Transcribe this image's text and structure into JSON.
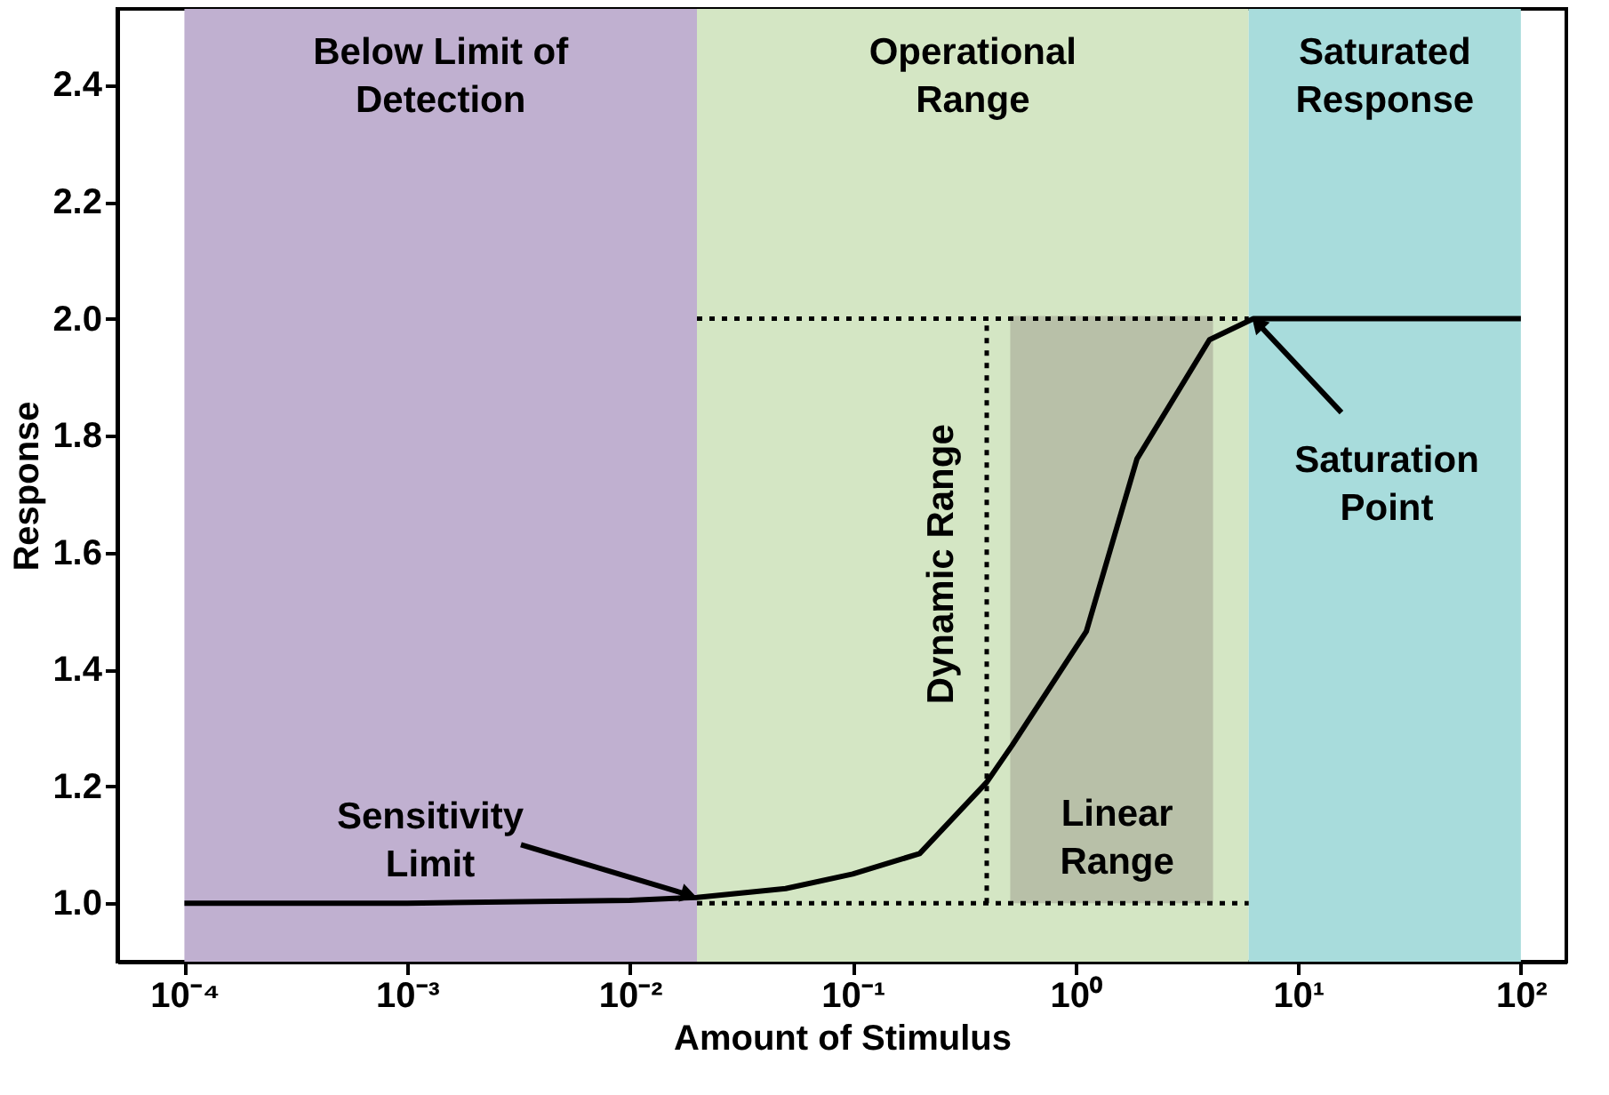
{
  "chart_data": {
    "type": "line",
    "xlabel": "Amount of Stimulus",
    "ylabel": "Response",
    "log": "x",
    "xlim": [
      5e-05,
      160
    ],
    "ylim": [
      0.9,
      2.53
    ],
    "xticks": [
      {
        "value": 0.0001,
        "label": "10⁻⁴"
      },
      {
        "value": 0.001,
        "label": "10⁻³"
      },
      {
        "value": 0.01,
        "label": "10⁻²"
      },
      {
        "value": 0.1,
        "label": "10⁻¹"
      },
      {
        "value": 1,
        "label": "10⁰"
      },
      {
        "value": 10,
        "label": "10¹"
      },
      {
        "value": 100,
        "label": "10²"
      }
    ],
    "yticks": [
      {
        "value": 1,
        "label": "1.0"
      },
      {
        "value": 1.2,
        "label": "1.2"
      },
      {
        "value": 1.4,
        "label": "1.4"
      },
      {
        "value": 1.6,
        "label": "1.6"
      },
      {
        "value": 1.8,
        "label": "1.8"
      },
      {
        "value": 2,
        "label": "2.0"
      },
      {
        "value": 2.2,
        "label": "2.2"
      },
      {
        "value": 2.4,
        "label": "2.4"
      }
    ],
    "grid": false,
    "bands": [
      {
        "axis": "x",
        "from": 0.0001,
        "to": 0.02,
        "label": "Below Limit of Detection",
        "color": "#c0b0d0"
      },
      {
        "axis": "x",
        "from": 0.02,
        "to": 6,
        "label": "Operational Range",
        "color": "#d4e6c4"
      },
      {
        "axis": "x",
        "from": 6,
        "to": 100,
        "label": "Saturated Response",
        "color": "#a8dcdc"
      }
    ],
    "series": [
      {
        "type": "line",
        "color": "#b8c0a8",
        "x": [
          0.51,
          4.15
        ],
        "values": [
          2,
          2
        ],
        "lower": [
          1,
          1
        ],
        "upper": [
          2,
          2
        ]
      },
      {
        "type": "line",
        "color": "#000000",
        "line_style": "dotted",
        "x": [
          0.02,
          6
        ],
        "values": [
          2,
          2
        ]
      },
      {
        "type": "line",
        "color": "#000000",
        "line_style": "dotted",
        "x": [
          0.02,
          6
        ],
        "values": [
          1,
          1
        ]
      },
      {
        "type": "line",
        "color": "#000000",
        "line_style": "dotted",
        "x": [
          0.4,
          0.4
        ],
        "values": [
          1,
          2
        ]
      },
      {
        "color": "#000000",
        "line_style": "solid",
        "x": [
          0.0001,
          0.001,
          0.01,
          0.02,
          0.05,
          0.1,
          0.2,
          0.4,
          0.52,
          1.12,
          1.89,
          4.0,
          6.3,
          100
        ],
        "values": [
          1.0,
          1.0,
          1.005,
          1.01,
          1.025,
          1.05,
          1.085,
          1.207,
          1.27,
          1.465,
          1.76,
          1.964,
          2.0,
          2.0
        ]
      }
    ],
    "annotations": [
      {
        "text": "Sensitivity Limit",
        "x": 0.02,
        "y": 1.01
      },
      {
        "text": "Saturation Point",
        "x": 6.3,
        "y": 2.0
      },
      {
        "text": "Dynamic Range",
        "x": 0.4,
        "y": 1.58
      },
      "Linear Range"
    ]
  }
}
